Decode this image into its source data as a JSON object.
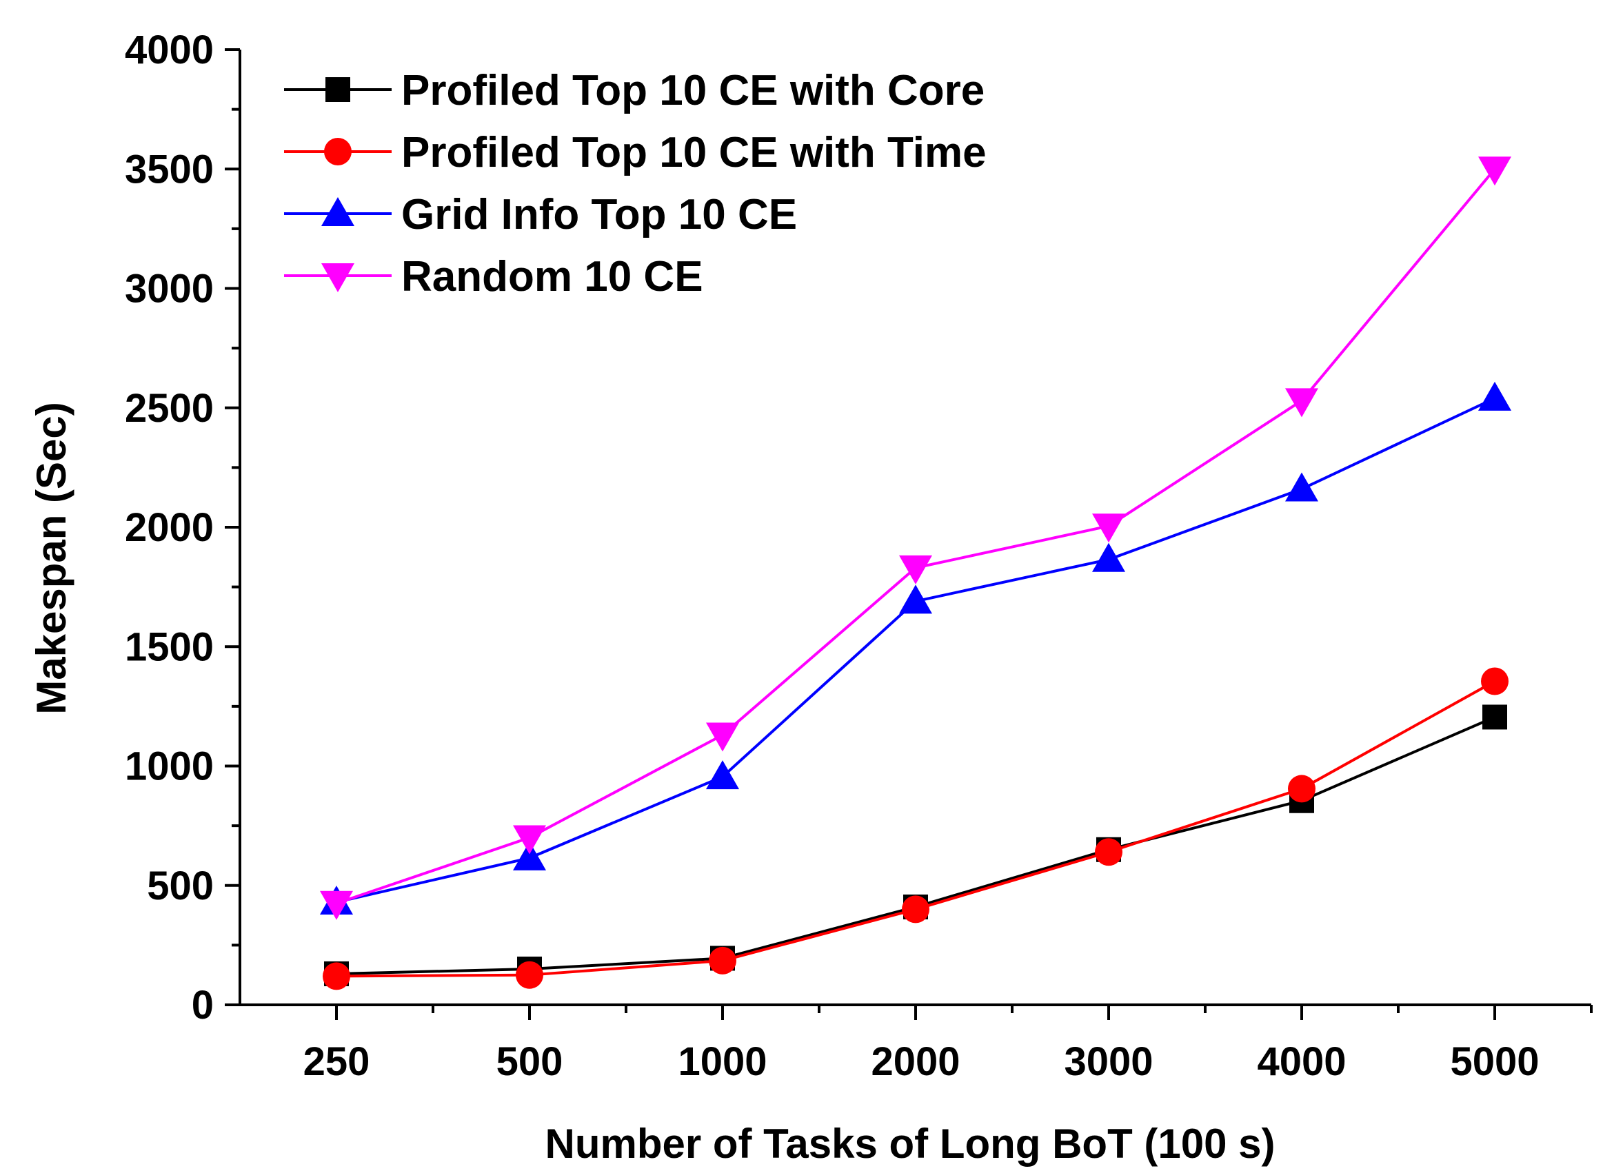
{
  "chart_data": {
    "type": "line",
    "title": "",
    "xlabel": "Number of Tasks of Long BoT (100 s)",
    "ylabel": "Makespan (Sec)",
    "categories": [
      "250",
      "500",
      "1000",
      "2000",
      "3000",
      "4000",
      "5000"
    ],
    "ylim": [
      0,
      4000
    ],
    "yticks": [
      "0",
      "500",
      "1000",
      "1500",
      "2000",
      "2500",
      "3000",
      "3500",
      "4000"
    ],
    "grid": false,
    "legend_position": "top-left",
    "series": [
      {
        "name": "Profiled Top 10 CE with Core",
        "color": "#000000",
        "marker": "square",
        "values": [
          130,
          150,
          195,
          410,
          650,
          855,
          1205
        ]
      },
      {
        "name": "Profiled Top 10 CE with Time",
        "color": "#ff0000",
        "marker": "circle",
        "values": [
          120,
          125,
          185,
          400,
          640,
          905,
          1355
        ]
      },
      {
        "name": "Grid Info Top 10 CE",
        "color": "#0000ff",
        "marker": "triangle-up",
        "values": [
          430,
          615,
          955,
          1690,
          1865,
          2160,
          2540
        ]
      },
      {
        "name": "Random 10 CE",
        "color": "#ff00ff",
        "marker": "triangle-down",
        "values": [
          425,
          700,
          1130,
          1830,
          2005,
          2530,
          3500
        ]
      }
    ]
  }
}
